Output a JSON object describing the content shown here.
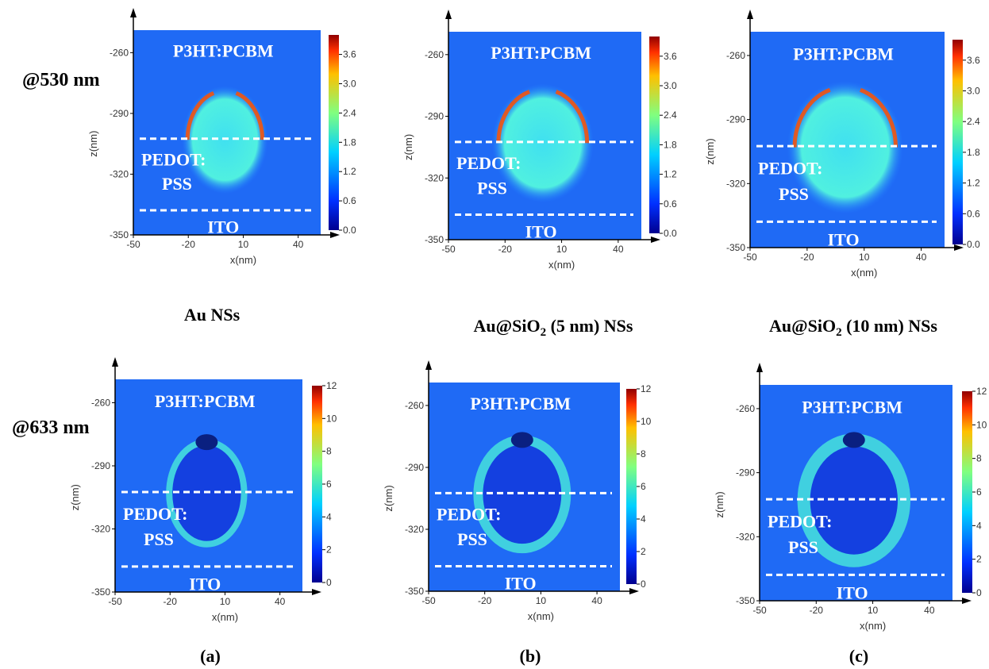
{
  "rows": [
    {
      "label": "@530 nm",
      "colorbar_ticks": [
        {
          "value": 3.6,
          "label": "3.6"
        },
        {
          "value": 3.0,
          "label": "3.0"
        },
        {
          "value": 2.4,
          "label": "2.4"
        },
        {
          "value": 1.8,
          "label": "1.8"
        },
        {
          "value": 1.2,
          "label": "1.2"
        },
        {
          "value": 0.6,
          "label": "0.6"
        },
        {
          "value": 0,
          "label": "0.0"
        }
      ]
    },
    {
      "label": "@633 nm",
      "colorbar_ticks": [
        12,
        10,
        8,
        6,
        4,
        2,
        0
      ]
    }
  ],
  "columns": [
    {
      "label": {
        "text": "Au NSs"
      },
      "letter": "(a)"
    },
    {
      "label": {
        "text": "Au@SiO",
        "sub": "2",
        "rest": " (5 nm) NSs"
      },
      "letter": "(b)"
    },
    {
      "label": {
        "text": "Au@SiO",
        "sub": "2",
        "rest": " (10 nm) NSs"
      },
      "letter": "(c)"
    }
  ],
  "axes": {
    "x_label": "x(nm)",
    "z_label": "z(nm)",
    "x_ticks": [
      -50,
      -20,
      10,
      40
    ],
    "z_ticks": [
      -260,
      -290,
      -320,
      -350
    ]
  },
  "layers": {
    "top": "P3HT:PCBM",
    "middle_1": "PEDOT:",
    "middle_2": "PSS",
    "bottom": "ITO"
  }
}
